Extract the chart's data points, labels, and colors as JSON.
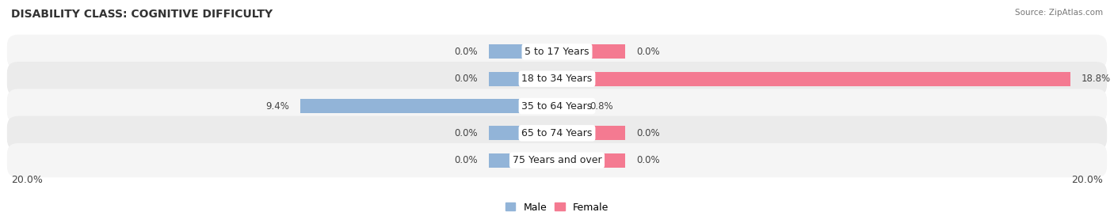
{
  "title": "DISABILITY CLASS: COGNITIVE DIFFICULTY",
  "source_text": "Source: ZipAtlas.com",
  "categories": [
    "5 to 17 Years",
    "18 to 34 Years",
    "35 to 64 Years",
    "65 to 74 Years",
    "75 Years and over"
  ],
  "male_values": [
    0.0,
    0.0,
    9.4,
    0.0,
    0.0
  ],
  "female_values": [
    0.0,
    18.8,
    0.8,
    0.0,
    0.0
  ],
  "x_max": 20.0,
  "male_color": "#92b4d8",
  "female_color": "#f47a91",
  "male_label": "Male",
  "female_label": "Female",
  "row_colors": [
    "#f5f5f5",
    "#ebebeb",
    "#f5f5f5",
    "#ebebeb",
    "#f5f5f5"
  ],
  "title_fontsize": 10,
  "label_fontsize": 9,
  "axis_label_fontsize": 9,
  "value_fontsize": 8.5,
  "bar_height": 0.52,
  "stub_size": 2.5,
  "x_min_label": "20.0%",
  "x_max_label": "20.0%"
}
